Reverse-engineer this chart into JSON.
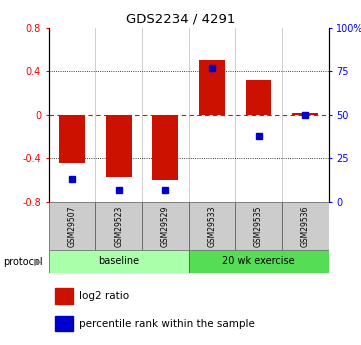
{
  "title": "GDS2234 / 4291",
  "samples": [
    "GSM29507",
    "GSM29523",
    "GSM29529",
    "GSM29533",
    "GSM29535",
    "GSM29536"
  ],
  "log2_ratio": [
    -0.44,
    -0.57,
    -0.6,
    0.5,
    0.32,
    0.02
  ],
  "percentile_rank": [
    13,
    7,
    7,
    77,
    38,
    50
  ],
  "bar_color": "#cc1100",
  "dot_color": "#0000cc",
  "ylim_left": [
    -0.8,
    0.8
  ],
  "ylim_right": [
    0,
    100
  ],
  "yticks_left": [
    -0.8,
    -0.4,
    0.0,
    0.4,
    0.8
  ],
  "yticks_right": [
    0,
    25,
    50,
    75,
    100
  ],
  "ytick_labels_left": [
    "-0.8",
    "-0.4",
    "0",
    "0.4",
    "0.8"
  ],
  "ytick_labels_right": [
    "0",
    "25",
    "50",
    "75",
    "100%"
  ],
  "dotted_lines": [
    -0.4,
    0.4
  ],
  "bg_color": "#ffffff",
  "legend_red_label": "log2 ratio",
  "legend_blue_label": "percentile rank within the sample",
  "protocol_label": "protocol",
  "baseline_color": "#aaffaa",
  "exercise_color": "#55dd55",
  "sample_bg_color": "#cccccc",
  "bar_width": 0.55
}
